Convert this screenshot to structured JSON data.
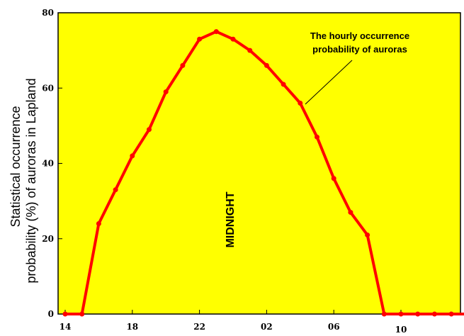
{
  "chart_data": {
    "type": "line",
    "ylabel_lines": [
      "Statistical occurrence",
      "probability (%)  of auroras in Lapland"
    ],
    "ylim": [
      0,
      80
    ],
    "y_ticks": [
      "0",
      "20",
      "40",
      "60",
      "80"
    ],
    "x_tick_labels": [
      "14",
      "18",
      "22",
      "02",
      "06",
      "10"
    ],
    "grid": false,
    "background_color": "#ffff00",
    "line_color": "#ff0000",
    "annotation_lines": [
      "The hourly occurrence",
      "probability of auroras"
    ],
    "midnight_label": "MIDNIGHT",
    "series": [
      {
        "x": [
          14,
          15,
          16,
          17,
          18,
          19,
          20,
          21,
          22,
          23,
          24,
          25,
          26,
          27,
          28,
          29,
          30,
          31,
          32,
          33,
          34,
          35,
          36,
          37,
          38
        ],
        "values": [
          0,
          0,
          24,
          33,
          42,
          49,
          59,
          66,
          73,
          75,
          73,
          70,
          66,
          61,
          56,
          47,
          36,
          27,
          21,
          0,
          0,
          0,
          0,
          0,
          0
        ]
      }
    ]
  }
}
